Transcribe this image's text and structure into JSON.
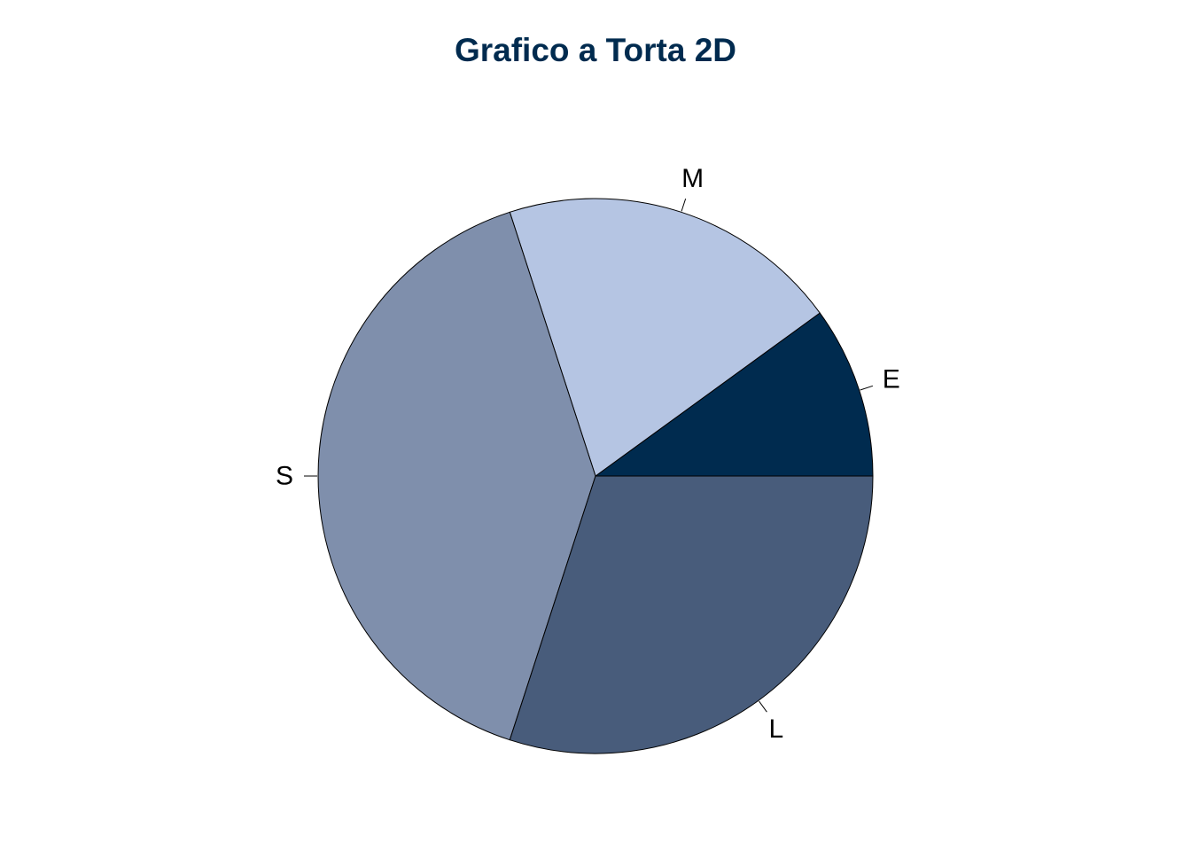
{
  "chart_data": {
    "type": "pie",
    "title": "Grafico a Torta 2D",
    "categories": [
      "E",
      "M",
      "S",
      "L"
    ],
    "values": [
      10,
      20,
      40,
      30
    ],
    "start_angle_deg": 0,
    "direction": "counterclockwise",
    "colors": [
      "#002b4f",
      "#b5c5e3",
      "#7f8fac",
      "#485c7b"
    ],
    "stroke_color": "#000000",
    "legend": "none"
  }
}
